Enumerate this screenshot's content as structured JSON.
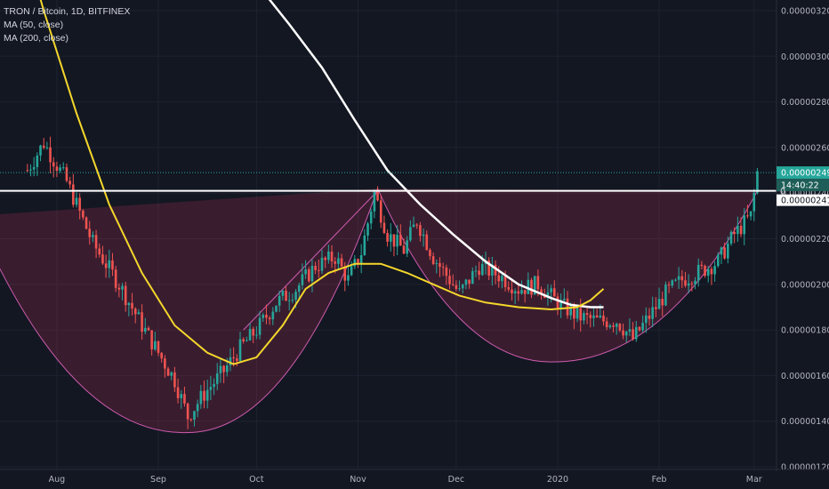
{
  "legend": {
    "symbol": "TRON / Bitcoin, 1D, BITFINEX",
    "ma50": "MA (50, close)",
    "ma200": "MA (200, close)"
  },
  "price_tags": {
    "last": "0.00000249",
    "countdown": "14:40:22",
    "line_level": "0.00000241",
    "marker": "0"
  },
  "colors": {
    "background": "#131722",
    "grid": "#1e2230",
    "up": "#26a69a",
    "down": "#ef5350",
    "ma50": "#f5d72b",
    "ma200": "#ffffff",
    "cup": "#8b2a4a",
    "cup_line": "#d05bb0",
    "last_price": "#26a69a"
  },
  "chart_data": {
    "type": "candlestick",
    "title": "TRON / Bitcoin, 1D, BITFINEX",
    "y_ticks": [
      "0.00000320",
      "0.00000300",
      "0.00000280",
      "0.00000260",
      "0.00000240",
      "0.00000220",
      "0.00000200",
      "0.00000180",
      "0.00000160",
      "0.00000140",
      "0.00000120"
    ],
    "x_ticks": [
      "Aug",
      "Sep",
      "Oct",
      "Nov",
      "Dec",
      "2020",
      "Feb",
      "Mar"
    ],
    "ylim": [
      1.18,
      3.24
    ],
    "y_unit_scale": "1e-6",
    "resistance_level": 2.41,
    "last_price": 2.49,
    "candles_anchor": [
      [
        -40,
        2.5
      ],
      [
        -35,
        2.62
      ],
      [
        -28,
        2.45
      ],
      [
        -20,
        2.18
      ],
      [
        -12,
        2.0
      ],
      [
        -5,
        1.82
      ],
      [
        0,
        1.7
      ],
      [
        5,
        1.58
      ],
      [
        9,
        1.42
      ],
      [
        14,
        1.52
      ],
      [
        20,
        1.62
      ],
      [
        25,
        1.72
      ],
      [
        30,
        1.8
      ],
      [
        36,
        1.92
      ],
      [
        42,
        1.98
      ],
      [
        48,
        2.08
      ],
      [
        54,
        2.12
      ],
      [
        58,
        2.02
      ],
      [
        62,
        2.14
      ],
      [
        66,
        2.4
      ],
      [
        70,
        2.22
      ],
      [
        75,
        2.15
      ],
      [
        79,
        2.28
      ],
      [
        84,
        2.12
      ],
      [
        88,
        2.04
      ],
      [
        92,
        1.96
      ],
      [
        98,
        2.08
      ],
      [
        104,
        2.04
      ],
      [
        110,
        1.98
      ],
      [
        116,
        2.0
      ],
      [
        122,
        1.92
      ],
      [
        128,
        1.86
      ],
      [
        134,
        1.84
      ],
      [
        140,
        1.84
      ],
      [
        145,
        1.76
      ],
      [
        150,
        1.86
      ],
      [
        155,
        1.96
      ],
      [
        160,
        2.02
      ],
      [
        166,
        2.06
      ],
      [
        171,
        2.1
      ],
      [
        176,
        2.22
      ],
      [
        181,
        2.3
      ],
      [
        183,
        2.49
      ]
    ],
    "ma50": [
      [
        -45,
        3.7
      ],
      [
        -35,
        3.2
      ],
      [
        -25,
        2.75
      ],
      [
        -15,
        2.35
      ],
      [
        -5,
        2.05
      ],
      [
        5,
        1.82
      ],
      [
        15,
        1.7
      ],
      [
        23,
        1.65
      ],
      [
        30,
        1.68
      ],
      [
        38,
        1.82
      ],
      [
        45,
        1.98
      ],
      [
        52,
        2.05
      ],
      [
        60,
        2.09
      ],
      [
        68,
        2.09
      ],
      [
        76,
        2.05
      ],
      [
        84,
        2.0
      ],
      [
        92,
        1.95
      ],
      [
        100,
        1.92
      ],
      [
        110,
        1.9
      ],
      [
        120,
        1.89
      ],
      [
        128,
        1.9
      ],
      [
        132,
        1.93
      ],
      [
        136,
        1.98
      ]
    ],
    "ma200": [
      [
        30,
        3.32
      ],
      [
        40,
        3.14
      ],
      [
        50,
        2.95
      ],
      [
        60,
        2.72
      ],
      [
        70,
        2.5
      ],
      [
        80,
        2.35
      ],
      [
        90,
        2.22
      ],
      [
        100,
        2.1
      ],
      [
        110,
        2.0
      ],
      [
        120,
        1.94
      ],
      [
        126,
        1.91
      ],
      [
        132,
        1.9
      ],
      [
        136,
        1.9
      ]
    ],
    "cups": [
      {
        "left": [
          -56,
          2.3
        ],
        "bottom": [
          9,
          1.35
        ],
        "right": [
          67,
          2.42
        ]
      },
      {
        "left": [
          67,
          2.42
        ],
        "bottom": [
          121,
          1.66
        ],
        "right": [
          183,
          2.41
        ]
      }
    ],
    "grid": true
  }
}
